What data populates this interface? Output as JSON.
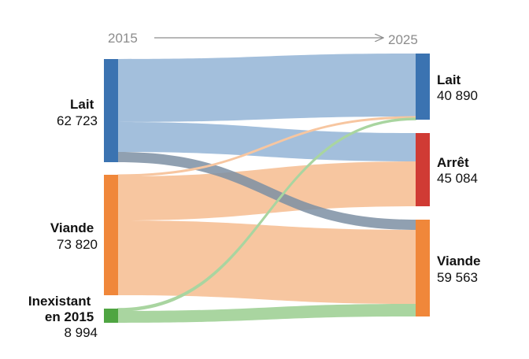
{
  "header": {
    "year_from": "2015",
    "year_to": "2025"
  },
  "colors": {
    "lait": "#3b73b1",
    "viande": "#f0873a",
    "inexistant": "#4fa542",
    "arret": "#d03b34",
    "flow_lait": "#a3bfdc",
    "flow_viande": "#f7c6a0",
    "flow_inexistant": "#a9d5a0",
    "flow_lait_dark": "#7d8fa3",
    "arrow": "#8c8c8c"
  },
  "sources": [
    {
      "id": "lait",
      "name": "Lait",
      "value": "62 723"
    },
    {
      "id": "viande",
      "name": "Viande",
      "value": "73 820"
    },
    {
      "id": "inexistant",
      "name_line1": "Inexistant",
      "name_line2": "en 2015",
      "value": "8 994"
    }
  ],
  "targets": [
    {
      "id": "lait",
      "name": "Lait",
      "value": "40 890"
    },
    {
      "id": "arret",
      "name": "Arrêt",
      "value": "45 084"
    },
    {
      "id": "viande",
      "name": "Viande",
      "value": "59 563"
    }
  ],
  "flows": [
    {
      "from": "lait",
      "to": "lait",
      "value": 37500
    },
    {
      "from": "lait",
      "to": "arret",
      "value": 20000
    },
    {
      "from": "lait",
      "to": "viande",
      "value": 5223
    },
    {
      "from": "viande",
      "to": "lait",
      "value": 700
    },
    {
      "from": "viande",
      "to": "arret",
      "value": 25084
    },
    {
      "from": "viande",
      "to": "viande",
      "value": 48036
    },
    {
      "from": "inexistant",
      "to": "lait",
      "value": 2690
    },
    {
      "from": "inexistant",
      "to": "viande",
      "value": 6304
    }
  ]
}
